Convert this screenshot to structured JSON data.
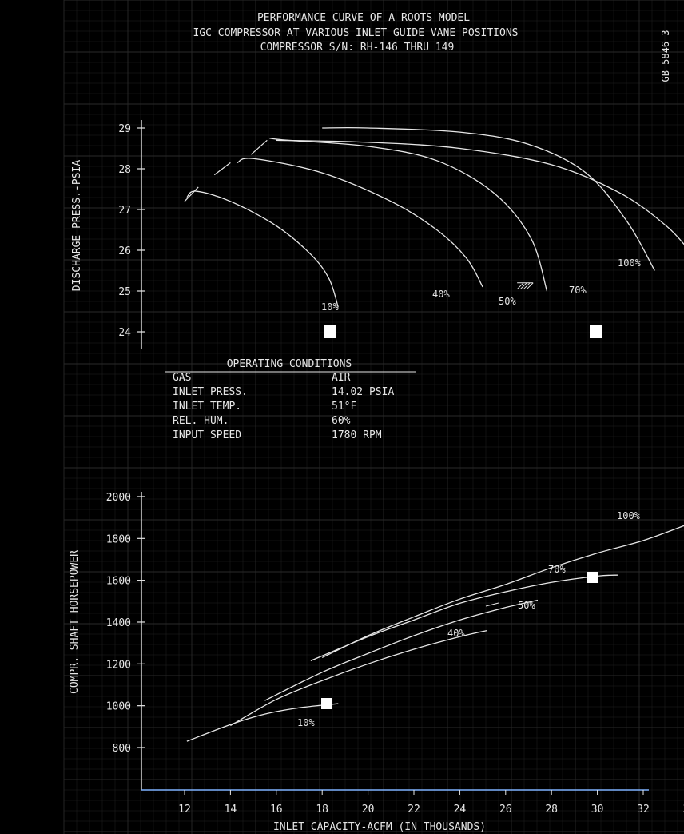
{
  "header": {
    "title_line1": "PERFORMANCE CURVE OF A ROOTS MODEL",
    "title_line2": "IGC COMPRESSOR AT VARIOUS INLET GUIDE VANE POSITIONS",
    "title_line3": "COMPRESSOR S/N: RH-146 THRU 149",
    "doc_id": "GB-5846-3"
  },
  "operating_conditions": {
    "heading": "OPERATING CONDITIONS",
    "rows": [
      {
        "label": "GAS",
        "value": "AIR"
      },
      {
        "label": "INLET PRESS.",
        "value": "14.02 PSIA"
      },
      {
        "label": "INLET TEMP.",
        "value": "51°F"
      },
      {
        "label": "REL. HUM.",
        "value": "60%"
      },
      {
        "label": "INPUT SPEED",
        "value": "1780 RPM"
      }
    ]
  },
  "colors": {
    "background": "#000000",
    "grid": "#2a2a2a",
    "line": "#e6e6e6",
    "marker": "#ffffff"
  },
  "chart_data": [
    {
      "type": "line",
      "title": "",
      "xlabel": "",
      "ylabel": "DISCHARGE PRESS.-PSIA",
      "xlim": [
        10.5,
        34
      ],
      "ylim": [
        23.7,
        29.1
      ],
      "yticks": [
        "24",
        "25",
        "26",
        "27",
        "28",
        "29"
      ],
      "grid": true,
      "series": [
        {
          "name": "10%",
          "points": [
            [
              12.1,
              27.3
            ],
            [
              12.5,
              27.45
            ],
            [
              14,
              27.2
            ],
            [
              16,
              26.6
            ],
            [
              17.5,
              25.9
            ],
            [
              18.3,
              25.3
            ],
            [
              18.7,
              24.6
            ]
          ]
        },
        {
          "name": "40%",
          "points": [
            [
              14.3,
              28.15
            ],
            [
              15,
              28.25
            ],
            [
              18,
              27.9
            ],
            [
              21,
              27.2
            ],
            [
              23,
              26.5
            ],
            [
              24.3,
              25.8
            ],
            [
              25,
              25.1
            ]
          ]
        },
        {
          "name": "50%",
          "points": [
            [
              15.7,
              28.75
            ],
            [
              16.5,
              28.7
            ],
            [
              20,
              28.55
            ],
            [
              23,
              28.2
            ],
            [
              25.5,
              27.4
            ],
            [
              27.1,
              26.3
            ],
            [
              27.8,
              25.0
            ]
          ]
        },
        {
          "name": "70%",
          "points": [
            [
              18,
              29.0
            ],
            [
              20,
              29.0
            ],
            [
              24,
              28.9
            ],
            [
              27,
              28.6
            ],
            [
              29.5,
              27.9
            ],
            [
              31.3,
              26.7
            ],
            [
              32.5,
              25.5
            ]
          ]
        },
        {
          "name": "100%",
          "points": [
            [
              16,
              28.7
            ],
            [
              20,
              28.65
            ],
            [
              24,
              28.5
            ],
            [
              28,
              28.1
            ],
            [
              31,
              27.4
            ],
            [
              33,
              26.6
            ],
            [
              34,
              26.0
            ]
          ]
        }
      ],
      "labels": [
        "10%",
        "40%",
        "50%",
        "70%",
        "100%"
      ]
    },
    {
      "type": "line",
      "title": "",
      "xlabel": "INLET CAPACITY-ACFM (IN THOUSANDS)",
      "ylabel": "COMPR. SHAFT HORSEPOWER",
      "xlim": [
        10.5,
        34
      ],
      "ylim": [
        600,
        2050
      ],
      "xticks": [
        "12",
        "14",
        "16",
        "18",
        "20",
        "22",
        "24",
        "26",
        "28",
        "30",
        "32",
        "34"
      ],
      "yticks": [
        "800",
        "1000",
        "1200",
        "1400",
        "1600",
        "1800",
        "2000"
      ],
      "grid": true,
      "series": [
        {
          "name": "10%",
          "points": [
            [
              12.1,
              830
            ],
            [
              14,
              910
            ],
            [
              15.5,
              960
            ],
            [
              17,
              990
            ],
            [
              18.7,
              1010
            ]
          ]
        },
        {
          "name": "40%",
          "points": [
            [
              14,
              905
            ],
            [
              16,
              1030
            ],
            [
              18,
              1120
            ],
            [
              20,
              1200
            ],
            [
              22,
              1270
            ],
            [
              24,
              1330
            ],
            [
              25.2,
              1360
            ]
          ]
        },
        {
          "name": "50%",
          "points": [
            [
              15.5,
              1025
            ],
            [
              18,
              1160
            ],
            [
              20,
              1250
            ],
            [
              22,
              1335
            ],
            [
              24,
              1410
            ],
            [
              26,
              1470
            ],
            [
              27.4,
              1505
            ]
          ]
        },
        {
          "name": "70%",
          "points": [
            [
              17.5,
              1215
            ],
            [
              20,
              1330
            ],
            [
              22,
              1410
            ],
            [
              24,
              1490
            ],
            [
              26,
              1545
            ],
            [
              28,
              1590
            ],
            [
              30,
              1620
            ],
            [
              30.9,
              1625
            ]
          ]
        },
        {
          "name": "100%",
          "points": [
            [
              18,
              1230
            ],
            [
              20,
              1335
            ],
            [
              22,
              1425
            ],
            [
              24,
              1510
            ],
            [
              26,
              1580
            ],
            [
              28,
              1660
            ],
            [
              30,
              1730
            ],
            [
              32,
              1790
            ],
            [
              34,
              1870
            ]
          ]
        }
      ],
      "labels": [
        "10%",
        "40%",
        "50%",
        "70%",
        "100%"
      ]
    }
  ]
}
